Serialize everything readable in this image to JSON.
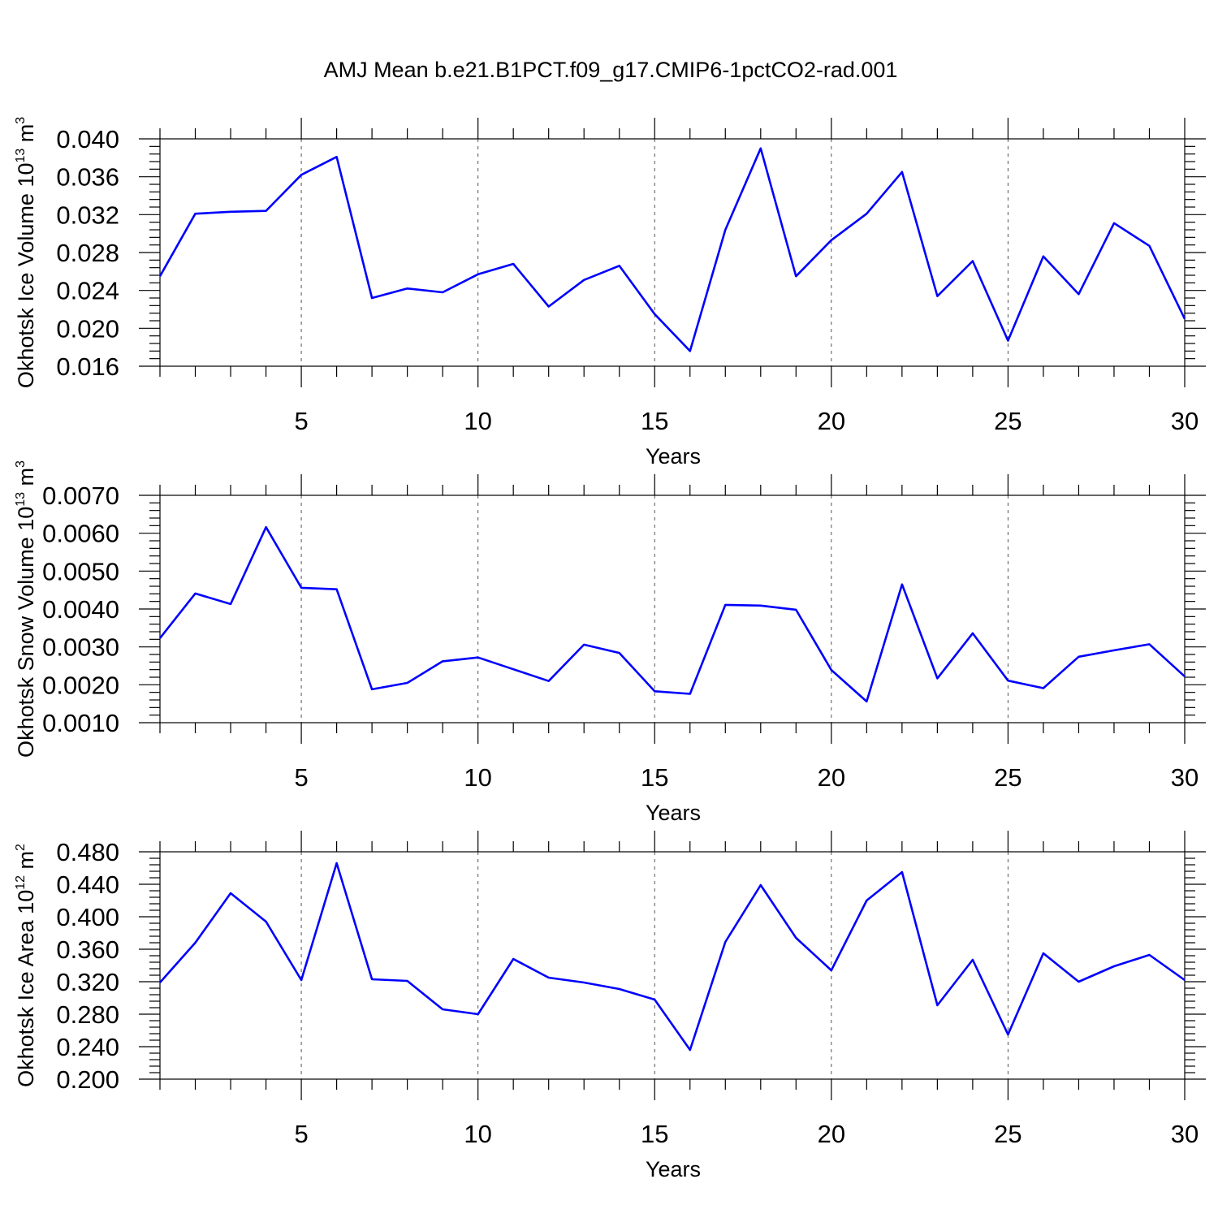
{
  "title": "AMJ Mean b.e21.B1PCT.f09_g17.CMIP6-1pctCO2-rad.001",
  "colors": {
    "line": "#0000ff",
    "axis": "#000000",
    "grid": "#555555"
  },
  "chart_data": [
    {
      "type": "line",
      "ylabel": {
        "text": "Okhotsk Ice Volume 10",
        "exp": "13",
        "unit": " m",
        "unit_exp": "3"
      },
      "xlabel": "Years",
      "xlim": [
        1,
        30
      ],
      "ylim": [
        0.016,
        0.04
      ],
      "xticks": [
        5,
        10,
        15,
        20,
        25,
        30
      ],
      "yticks": [
        "0.016",
        "0.020",
        "0.024",
        "0.028",
        "0.032",
        "0.036",
        "0.040"
      ],
      "ymajor_step": 0.004,
      "yminor_step": 0.0008,
      "xminor_step": 1,
      "grid": "vertical dashed at x ticks",
      "x": [
        1,
        2,
        3,
        4,
        5,
        6,
        7,
        8,
        9,
        10,
        11,
        12,
        13,
        14,
        15,
        16,
        17,
        18,
        19,
        20,
        21,
        22,
        23,
        24,
        25,
        26,
        27,
        28,
        29,
        30
      ],
      "values": [
        0.0255,
        0.0321,
        0.0323,
        0.0324,
        0.0362,
        0.0381,
        0.0232,
        0.0242,
        0.0238,
        0.0257,
        0.0268,
        0.0223,
        0.0251,
        0.0266,
        0.0215,
        0.0176,
        0.0304,
        0.039,
        0.0255,
        0.0293,
        0.0321,
        0.0365,
        0.0234,
        0.0271,
        0.0187,
        0.0276,
        0.0236,
        0.0311,
        0.0287,
        0.021
      ]
    },
    {
      "type": "line",
      "ylabel": {
        "text": "Okhotsk Snow Volume 10",
        "exp": "13",
        "unit": " m",
        "unit_exp": "3"
      },
      "xlabel": "Years",
      "xlim": [
        1,
        30
      ],
      "ylim": [
        0.001,
        0.007
      ],
      "xticks": [
        5,
        10,
        15,
        20,
        25,
        30
      ],
      "yticks": [
        "0.0010",
        "0.0020",
        "0.0030",
        "0.0040",
        "0.0050",
        "0.0060",
        "0.0070"
      ],
      "ymajor_step": 0.001,
      "yminor_step": 0.0002,
      "xminor_step": 1,
      "grid": "vertical dashed at x ticks",
      "x": [
        1,
        2,
        3,
        4,
        5,
        6,
        7,
        8,
        9,
        10,
        11,
        12,
        13,
        14,
        15,
        16,
        17,
        18,
        19,
        20,
        21,
        22,
        23,
        24,
        25,
        26,
        27,
        28,
        29,
        30
      ],
      "values": [
        0.00323,
        0.00441,
        0.00413,
        0.00616,
        0.00456,
        0.00452,
        0.00188,
        0.00205,
        0.00262,
        0.00272,
        0.00241,
        0.0021,
        0.00306,
        0.00284,
        0.00183,
        0.00176,
        0.00411,
        0.00409,
        0.00398,
        0.00239,
        0.00156,
        0.00465,
        0.00217,
        0.00336,
        0.00211,
        0.00191,
        0.00274,
        0.00291,
        0.00307,
        0.00222
      ]
    },
    {
      "type": "line",
      "ylabel": {
        "text": "Okhotsk Ice Area 10",
        "exp": "12",
        "unit": " m",
        "unit_exp": "2"
      },
      "xlabel": "Years",
      "xlim": [
        1,
        30
      ],
      "ylim": [
        0.2,
        0.48
      ],
      "xticks": [
        5,
        10,
        15,
        20,
        25,
        30
      ],
      "yticks": [
        "0.200",
        "0.240",
        "0.280",
        "0.320",
        "0.360",
        "0.400",
        "0.440",
        "0.480"
      ],
      "ymajor_step": 0.04,
      "yminor_step": 0.008,
      "xminor_step": 1,
      "grid": "vertical dashed at x ticks",
      "x": [
        1,
        2,
        3,
        4,
        5,
        6,
        7,
        8,
        9,
        10,
        11,
        12,
        13,
        14,
        15,
        16,
        17,
        18,
        19,
        20,
        21,
        22,
        23,
        24,
        25,
        26,
        27,
        28,
        29,
        30
      ],
      "values": [
        0.319,
        0.368,
        0.429,
        0.394,
        0.322,
        0.466,
        0.323,
        0.321,
        0.286,
        0.28,
        0.348,
        0.325,
        0.319,
        0.311,
        0.298,
        0.236,
        0.369,
        0.439,
        0.374,
        0.334,
        0.42,
        0.455,
        0.291,
        0.347,
        0.255,
        0.355,
        0.32,
        0.339,
        0.353,
        0.322
      ]
    }
  ]
}
